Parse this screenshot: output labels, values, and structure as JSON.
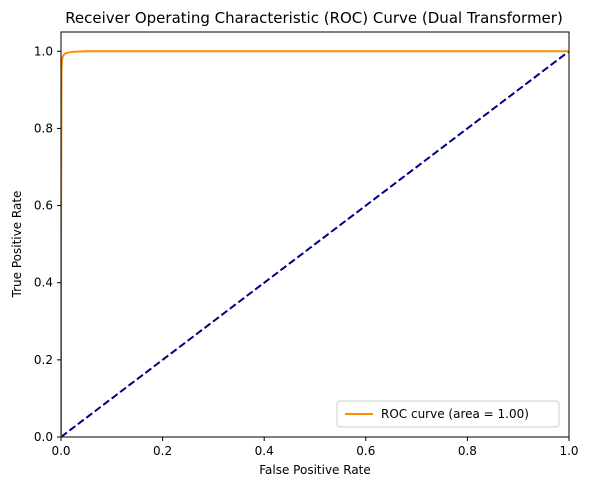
{
  "chart_data": {
    "type": "line",
    "title": "Receiver Operating Characteristic (ROC) Curve (Dual Transformer)",
    "xlabel": "False Positive Rate",
    "ylabel": "True Positive Rate",
    "xlim": [
      0.0,
      1.0
    ],
    "ylim": [
      0.0,
      1.05
    ],
    "xticks": [
      "0.0",
      "0.2",
      "0.4",
      "0.6",
      "0.8",
      "1.0"
    ],
    "yticks": [
      "0.0",
      "0.2",
      "0.4",
      "0.6",
      "0.8",
      "1.0"
    ],
    "grid": false,
    "legend_position": "lower-right",
    "series": [
      {
        "name": "ROC curve (area = 1.00)",
        "color": "#ff8c00",
        "style": "solid",
        "x": [
          0.0,
          0.0,
          0.001,
          0.002,
          0.003,
          0.005,
          0.008,
          0.012,
          0.02,
          0.03,
          0.05,
          0.1,
          1.0
        ],
        "y": [
          0.0,
          0.5,
          0.95,
          0.975,
          0.985,
          0.99,
          0.994,
          0.996,
          0.998,
          0.999,
          1.0,
          1.0,
          1.0
        ]
      },
      {
        "color": "#000080",
        "style": "dashed",
        "x": [
          0.0,
          1.0
        ],
        "y": [
          0.0,
          1.0
        ]
      }
    ]
  }
}
